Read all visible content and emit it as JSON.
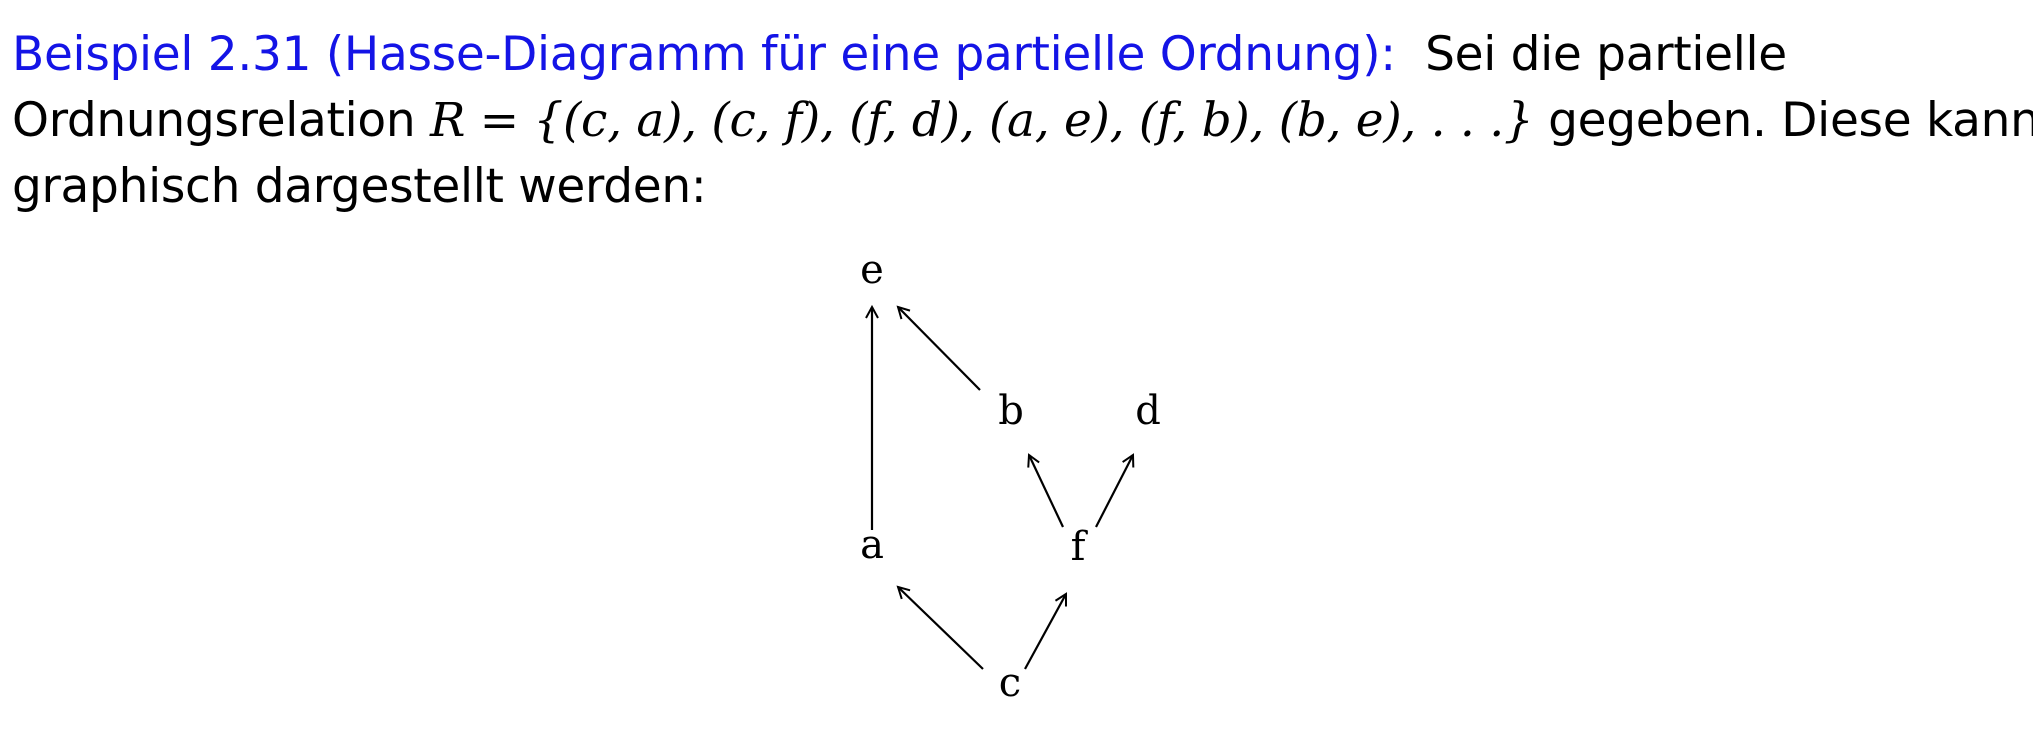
{
  "paragraph": {
    "heading": "Beispiel 2.31 (Hasse-Diagramm für eine partielle Ordnung):",
    "line1_rest": "Sei die partielle",
    "line2_prefix": "Ordnungsrelation",
    "relation_symbol": "R",
    "equals": "=",
    "relation_set": "{(c, a), (c, f), (f, d), (a, e), (f, b), (b, e), . . .}",
    "line2_suffix": "gegeben. Diese kann",
    "line3": "graphisch dargestellt werden:"
  },
  "colors": {
    "heading": "#1414e6",
    "text": "#000000"
  },
  "diagram": {
    "nodes": [
      {
        "id": "e",
        "label": "e"
      },
      {
        "id": "b",
        "label": "b"
      },
      {
        "id": "d",
        "label": "d"
      },
      {
        "id": "a",
        "label": "a"
      },
      {
        "id": "f",
        "label": "f"
      },
      {
        "id": "c",
        "label": "c"
      }
    ],
    "edges": [
      {
        "from": "c",
        "to": "a"
      },
      {
        "from": "c",
        "to": "f"
      },
      {
        "from": "f",
        "to": "b"
      },
      {
        "from": "f",
        "to": "d"
      },
      {
        "from": "a",
        "to": "e"
      },
      {
        "from": "b",
        "to": "e"
      }
    ]
  }
}
